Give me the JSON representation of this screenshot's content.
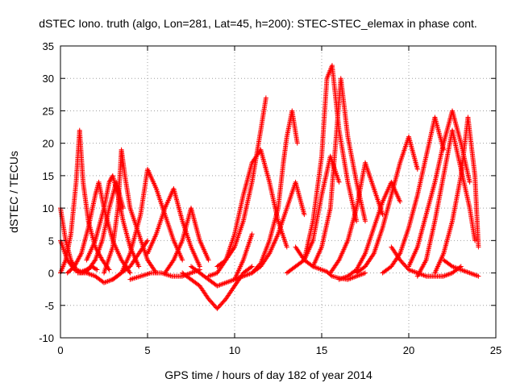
{
  "chart_data": {
    "type": "scatter",
    "title": "dSTEC Iono. truth (algo, Lon=281, Lat=45, h=200): STEC-STEC_elemax in phase cont.",
    "xlabel": "GPS time / hours of day 182 of year 2014",
    "ylabel": "dSTEC  / TECUs",
    "xlim": [
      0,
      25
    ],
    "ylim": [
      -10,
      35
    ],
    "xticks": [
      0,
      5,
      10,
      15,
      20,
      25
    ],
    "yticks": [
      -10,
      -5,
      0,
      5,
      10,
      15,
      20,
      25,
      30,
      35
    ],
    "grid": true,
    "marker": "plus",
    "color": "#ff0000",
    "series": [
      {
        "x": [
          0.0,
          0.3,
          0.6,
          0.9,
          1.2,
          1.5,
          1.8,
          2.1
        ],
        "y": [
          10,
          5,
          2,
          0.5,
          0.2,
          0.5,
          1,
          0.5
        ]
      },
      {
        "x": [
          0.0,
          0.3,
          0.6,
          0.9,
          1.1,
          1.3,
          1.6,
          2.0,
          2.4,
          2.8
        ],
        "y": [
          0,
          2,
          6,
          14,
          22,
          14,
          8,
          4,
          2,
          0.5
        ]
      },
      {
        "x": [
          0.0,
          0.4,
          0.8,
          1.2,
          1.6,
          2.0,
          2.4,
          2.8,
          3.2,
          3.6
        ],
        "y": [
          5,
          2,
          0.5,
          0,
          0.5,
          2,
          5,
          10,
          14,
          10
        ]
      },
      {
        "x": [
          0.4,
          0.8,
          1.2,
          1.6,
          2.0,
          2.2,
          2.5,
          3.0,
          3.5,
          4.0
        ],
        "y": [
          0,
          1,
          3,
          7,
          12,
          14,
          10,
          5,
          2,
          0
        ]
      },
      {
        "x": [
          1.0,
          1.5,
          2.0,
          2.5,
          3.0,
          3.5,
          4.0,
          4.5,
          5.0
        ],
        "y": [
          0,
          0,
          -0.5,
          -1.5,
          -1,
          0,
          1,
          3,
          5
        ]
      },
      {
        "x": [
          1.5,
          2.0,
          2.5,
          2.8,
          3.0,
          3.3,
          3.6,
          4.0,
          4.5
        ],
        "y": [
          2,
          5,
          10,
          14,
          15,
          12,
          8,
          4,
          1
        ]
      },
      {
        "x": [
          2.5,
          3.0,
          3.3,
          3.5,
          3.7,
          4.0,
          4.5,
          5.0,
          5.5
        ],
        "y": [
          0,
          4,
          10,
          19,
          15,
          10,
          6,
          2,
          0
        ]
      },
      {
        "x": [
          3.0,
          3.5,
          4.0,
          4.3,
          4.6,
          5.0,
          5.5,
          6.0,
          6.5,
          7.0
        ],
        "y": [
          -1,
          0,
          3,
          6,
          9,
          16,
          13,
          9,
          5,
          2
        ]
      },
      {
        "x": [
          4.0,
          4.6,
          5.2,
          5.8,
          6.4,
          7.0,
          7.5,
          8.0
        ],
        "y": [
          -1,
          -0.5,
          0,
          0,
          -0.5,
          -0.5,
          0,
          0.5
        ]
      },
      {
        "x": [
          5.0,
          5.5,
          6.0,
          6.5,
          7.0,
          7.5,
          8.0
        ],
        "y": [
          3,
          6,
          10,
          13,
          8,
          4,
          1
        ]
      },
      {
        "x": [
          6.0,
          6.5,
          7.0,
          7.5,
          8.0,
          8.5
        ],
        "y": [
          0,
          2,
          5,
          10,
          5,
          2
        ]
      },
      {
        "x": [
          7.0,
          7.5,
          8.0,
          8.5,
          9.0,
          9.5,
          10.0,
          10.5,
          11.0
        ],
        "y": [
          0,
          -1,
          -2,
          -4,
          -5.5,
          -4,
          -2,
          0,
          1
        ]
      },
      {
        "x": [
          7.5,
          8.0,
          8.5,
          9.0,
          9.5,
          10.0,
          10.5,
          11.0
        ],
        "y": [
          1,
          0,
          -1,
          -2,
          -1.5,
          -1,
          2,
          6
        ]
      },
      {
        "x": [
          8.5,
          9.0,
          9.5,
          10.0,
          10.5,
          11.0,
          11.5,
          12.0,
          12.5,
          13.0
        ],
        "y": [
          -0.5,
          0,
          2,
          6,
          12,
          17,
          19,
          14,
          8,
          4
        ]
      },
      {
        "x": [
          9.0,
          9.5,
          10.0,
          10.5,
          11.0,
          11.5,
          11.8
        ],
        "y": [
          1,
          2,
          4,
          8,
          14,
          22,
          27
        ]
      },
      {
        "x": [
          10.0,
          10.5,
          11.0,
          11.5,
          12.0,
          12.5,
          13.0,
          13.5,
          14.0
        ],
        "y": [
          -1,
          -0.5,
          0,
          1,
          3,
          6,
          10,
          14,
          9
        ]
      },
      {
        "x": [
          11.0,
          11.5,
          12.0,
          12.5,
          12.8,
          13.0,
          13.3,
          13.6
        ],
        "y": [
          0,
          1.5,
          5,
          10,
          17,
          21,
          25,
          20
        ]
      },
      {
        "x": [
          13.0,
          13.5,
          14.0,
          14.5,
          15.0,
          15.5,
          16.0
        ],
        "y": [
          0,
          1,
          2,
          5,
          12,
          18,
          14
        ]
      },
      {
        "x": [
          13.5,
          14.0,
          14.5,
          15.0,
          15.3,
          15.6,
          16.0,
          16.5,
          17.0,
          17.5
        ],
        "y": [
          4,
          2,
          1,
          0.5,
          0.2,
          -0.5,
          -0.8,
          -1,
          -0.5,
          0
        ]
      },
      {
        "x": [
          14.0,
          14.5,
          15.0,
          15.3,
          15.6,
          16.0,
          16.5,
          17.0
        ],
        "y": [
          2,
          8,
          18,
          30,
          32,
          22,
          14,
          8
        ]
      },
      {
        "x": [
          14.5,
          15.0,
          15.5,
          15.8,
          16.1,
          16.5,
          17.0,
          17.5
        ],
        "y": [
          1,
          4,
          10,
          20,
          30,
          21,
          14,
          8
        ]
      },
      {
        "x": [
          15.5,
          16.0,
          16.5,
          17.0,
          17.5,
          18.0,
          18.5
        ],
        "y": [
          0,
          2,
          5,
          10,
          17,
          13,
          9
        ]
      },
      {
        "x": [
          16.0,
          16.5,
          17.0,
          17.5,
          18.0,
          18.5,
          19.0,
          19.5
        ],
        "y": [
          -1,
          -0.5,
          0.5,
          3,
          7,
          11,
          14,
          11
        ]
      },
      {
        "x": [
          17.0,
          17.5,
          18.0,
          18.5,
          19.0,
          19.5,
          20.0,
          20.5
        ],
        "y": [
          0,
          1,
          3,
          7,
          12,
          17,
          21,
          16
        ]
      },
      {
        "x": [
          18.5,
          19.0,
          19.5,
          20.0,
          20.5,
          21.0,
          21.5,
          22.0
        ],
        "y": [
          0,
          1,
          3,
          7,
          12,
          18,
          24,
          19
        ]
      },
      {
        "x": [
          19.0,
          19.5,
          20.0,
          20.5,
          21.0,
          21.5,
          22.0,
          22.5,
          23.0
        ],
        "y": [
          4,
          2,
          0.5,
          0,
          -0.5,
          -0.5,
          -0.5,
          0,
          1
        ]
      },
      {
        "x": [
          20.0,
          20.5,
          21.0,
          21.5,
          22.0,
          22.5,
          23.0,
          23.5
        ],
        "y": [
          1,
          4,
          9,
          14,
          20,
          25,
          20,
          14
        ]
      },
      {
        "x": [
          20.5,
          21.0,
          21.5,
          22.0,
          22.5,
          23.0,
          23.5,
          23.8
        ],
        "y": [
          -0.5,
          2,
          8,
          15,
          22,
          16,
          10,
          5
        ]
      },
      {
        "x": [
          21.5,
          22.0,
          22.5,
          23.0,
          23.4,
          23.8,
          24.0
        ],
        "y": [
          0,
          3,
          8,
          15,
          24,
          15,
          4
        ]
      },
      {
        "x": [
          22.0,
          22.5,
          23.0,
          23.5,
          24.0
        ],
        "y": [
          2,
          1,
          0.5,
          0,
          -0.5
        ]
      }
    ]
  }
}
